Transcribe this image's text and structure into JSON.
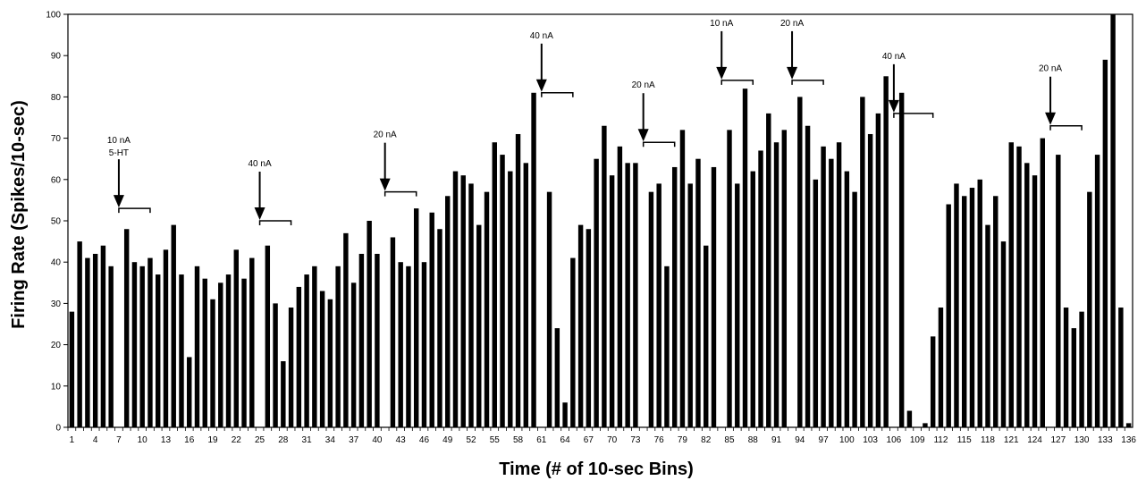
{
  "chart_data": {
    "type": "bar",
    "title": "",
    "xlabel": "Time (# of 10-sec Bins)",
    "ylabel": "Firing Rate (Spikes/10-sec)",
    "ylim": [
      0,
      100
    ],
    "yticks": [
      0,
      10,
      20,
      30,
      40,
      50,
      60,
      70,
      80,
      90,
      100
    ],
    "xtick_labels": [
      "1",
      "4",
      "7",
      "10",
      "13",
      "16",
      "19",
      "22",
      "25",
      "28",
      "31",
      "34",
      "37",
      "40",
      "43",
      "46",
      "49",
      "52",
      "55",
      "58",
      "61",
      "64",
      "67",
      "70",
      "73",
      "76",
      "79",
      "82",
      "85",
      "88",
      "91",
      "94",
      "97",
      "100",
      "103",
      "106",
      "109",
      "112",
      "115",
      "118",
      "121",
      "124",
      "127",
      "130",
      "133",
      "136"
    ],
    "x": [
      1,
      2,
      3,
      4,
      5,
      6,
      7,
      8,
      9,
      10,
      11,
      12,
      13,
      14,
      15,
      16,
      17,
      18,
      19,
      20,
      21,
      22,
      23,
      24,
      25,
      26,
      27,
      28,
      29,
      30,
      31,
      32,
      33,
      34,
      35,
      36,
      37,
      38,
      39,
      40,
      41,
      42,
      43,
      44,
      45,
      46,
      47,
      48,
      49,
      50,
      51,
      52,
      53,
      54,
      55,
      56,
      57,
      58,
      59,
      60,
      61,
      62,
      63,
      64,
      65,
      66,
      67,
      68,
      69,
      70,
      71,
      72,
      73,
      74,
      75,
      76,
      77,
      78,
      79,
      80,
      81,
      82,
      83,
      84,
      85,
      86,
      87,
      88,
      89,
      90,
      91,
      92,
      93,
      94,
      95,
      96,
      97,
      98,
      99,
      100,
      101,
      102,
      103,
      104,
      105,
      106,
      107,
      108,
      109,
      110,
      111,
      112,
      113,
      114,
      115,
      116,
      117,
      118,
      119,
      120,
      121,
      122,
      123,
      124,
      125,
      126,
      127,
      128,
      129,
      130,
      131,
      132,
      133,
      134,
      135,
      136
    ],
    "values": [
      28,
      45,
      41,
      42,
      44,
      39,
      0,
      48,
      40,
      39,
      41,
      37,
      43,
      49,
      37,
      17,
      39,
      36,
      31,
      35,
      37,
      43,
      36,
      41,
      0,
      44,
      30,
      16,
      29,
      34,
      37,
      39,
      33,
      31,
      39,
      47,
      35,
      42,
      50,
      42,
      0,
      46,
      40,
      39,
      53,
      40,
      52,
      48,
      56,
      62,
      61,
      59,
      49,
      57,
      69,
      66,
      62,
      71,
      64,
      81,
      0,
      57,
      24,
      6,
      41,
      49,
      48,
      65,
      73,
      61,
      68,
      64,
      64,
      0,
      57,
      59,
      39,
      63,
      72,
      59,
      65,
      44,
      63,
      0,
      72,
      59,
      82,
      62,
      67,
      76,
      69,
      72,
      0,
      80,
      73,
      60,
      68,
      65,
      69,
      62,
      57,
      80,
      71,
      76,
      85,
      0,
      81,
      4,
      0,
      1,
      22,
      29,
      54,
      59,
      56,
      58,
      60,
      49,
      56,
      45,
      69,
      68,
      64,
      61,
      70,
      0,
      66,
      29,
      24,
      28,
      57,
      66,
      89,
      100,
      29,
      1
    ],
    "annotations": [
      {
        "x": 7,
        "label": "10 nA",
        "label2": "5-HT",
        "level": 53,
        "bracket_end": 11
      },
      {
        "x": 25,
        "label": "40 nA",
        "label2": "",
        "level": 50,
        "bracket_end": 29
      },
      {
        "x": 41,
        "label": "20 nA",
        "label2": "",
        "level": 57,
        "bracket_end": 45
      },
      {
        "x": 61,
        "label": "40 nA",
        "label2": "",
        "level": 81,
        "bracket_end": 65
      },
      {
        "x": 74,
        "label": "20 nA",
        "label2": "",
        "level": 69,
        "bracket_end": 78
      },
      {
        "x": 84,
        "label": "10 nA",
        "label2": "",
        "level": 84,
        "bracket_end": 88
      },
      {
        "x": 93,
        "label": "20 nA",
        "label2": "",
        "level": 84,
        "bracket_end": 97
      },
      {
        "x": 106,
        "label": "40 nA",
        "label2": "",
        "level": 76,
        "bracket_end": 111
      },
      {
        "x": 126,
        "label": "20 nA",
        "label2": "",
        "level": 73,
        "bracket_end": 130
      }
    ],
    "grid": false,
    "legend": "none",
    "bar_color": "#000000"
  }
}
